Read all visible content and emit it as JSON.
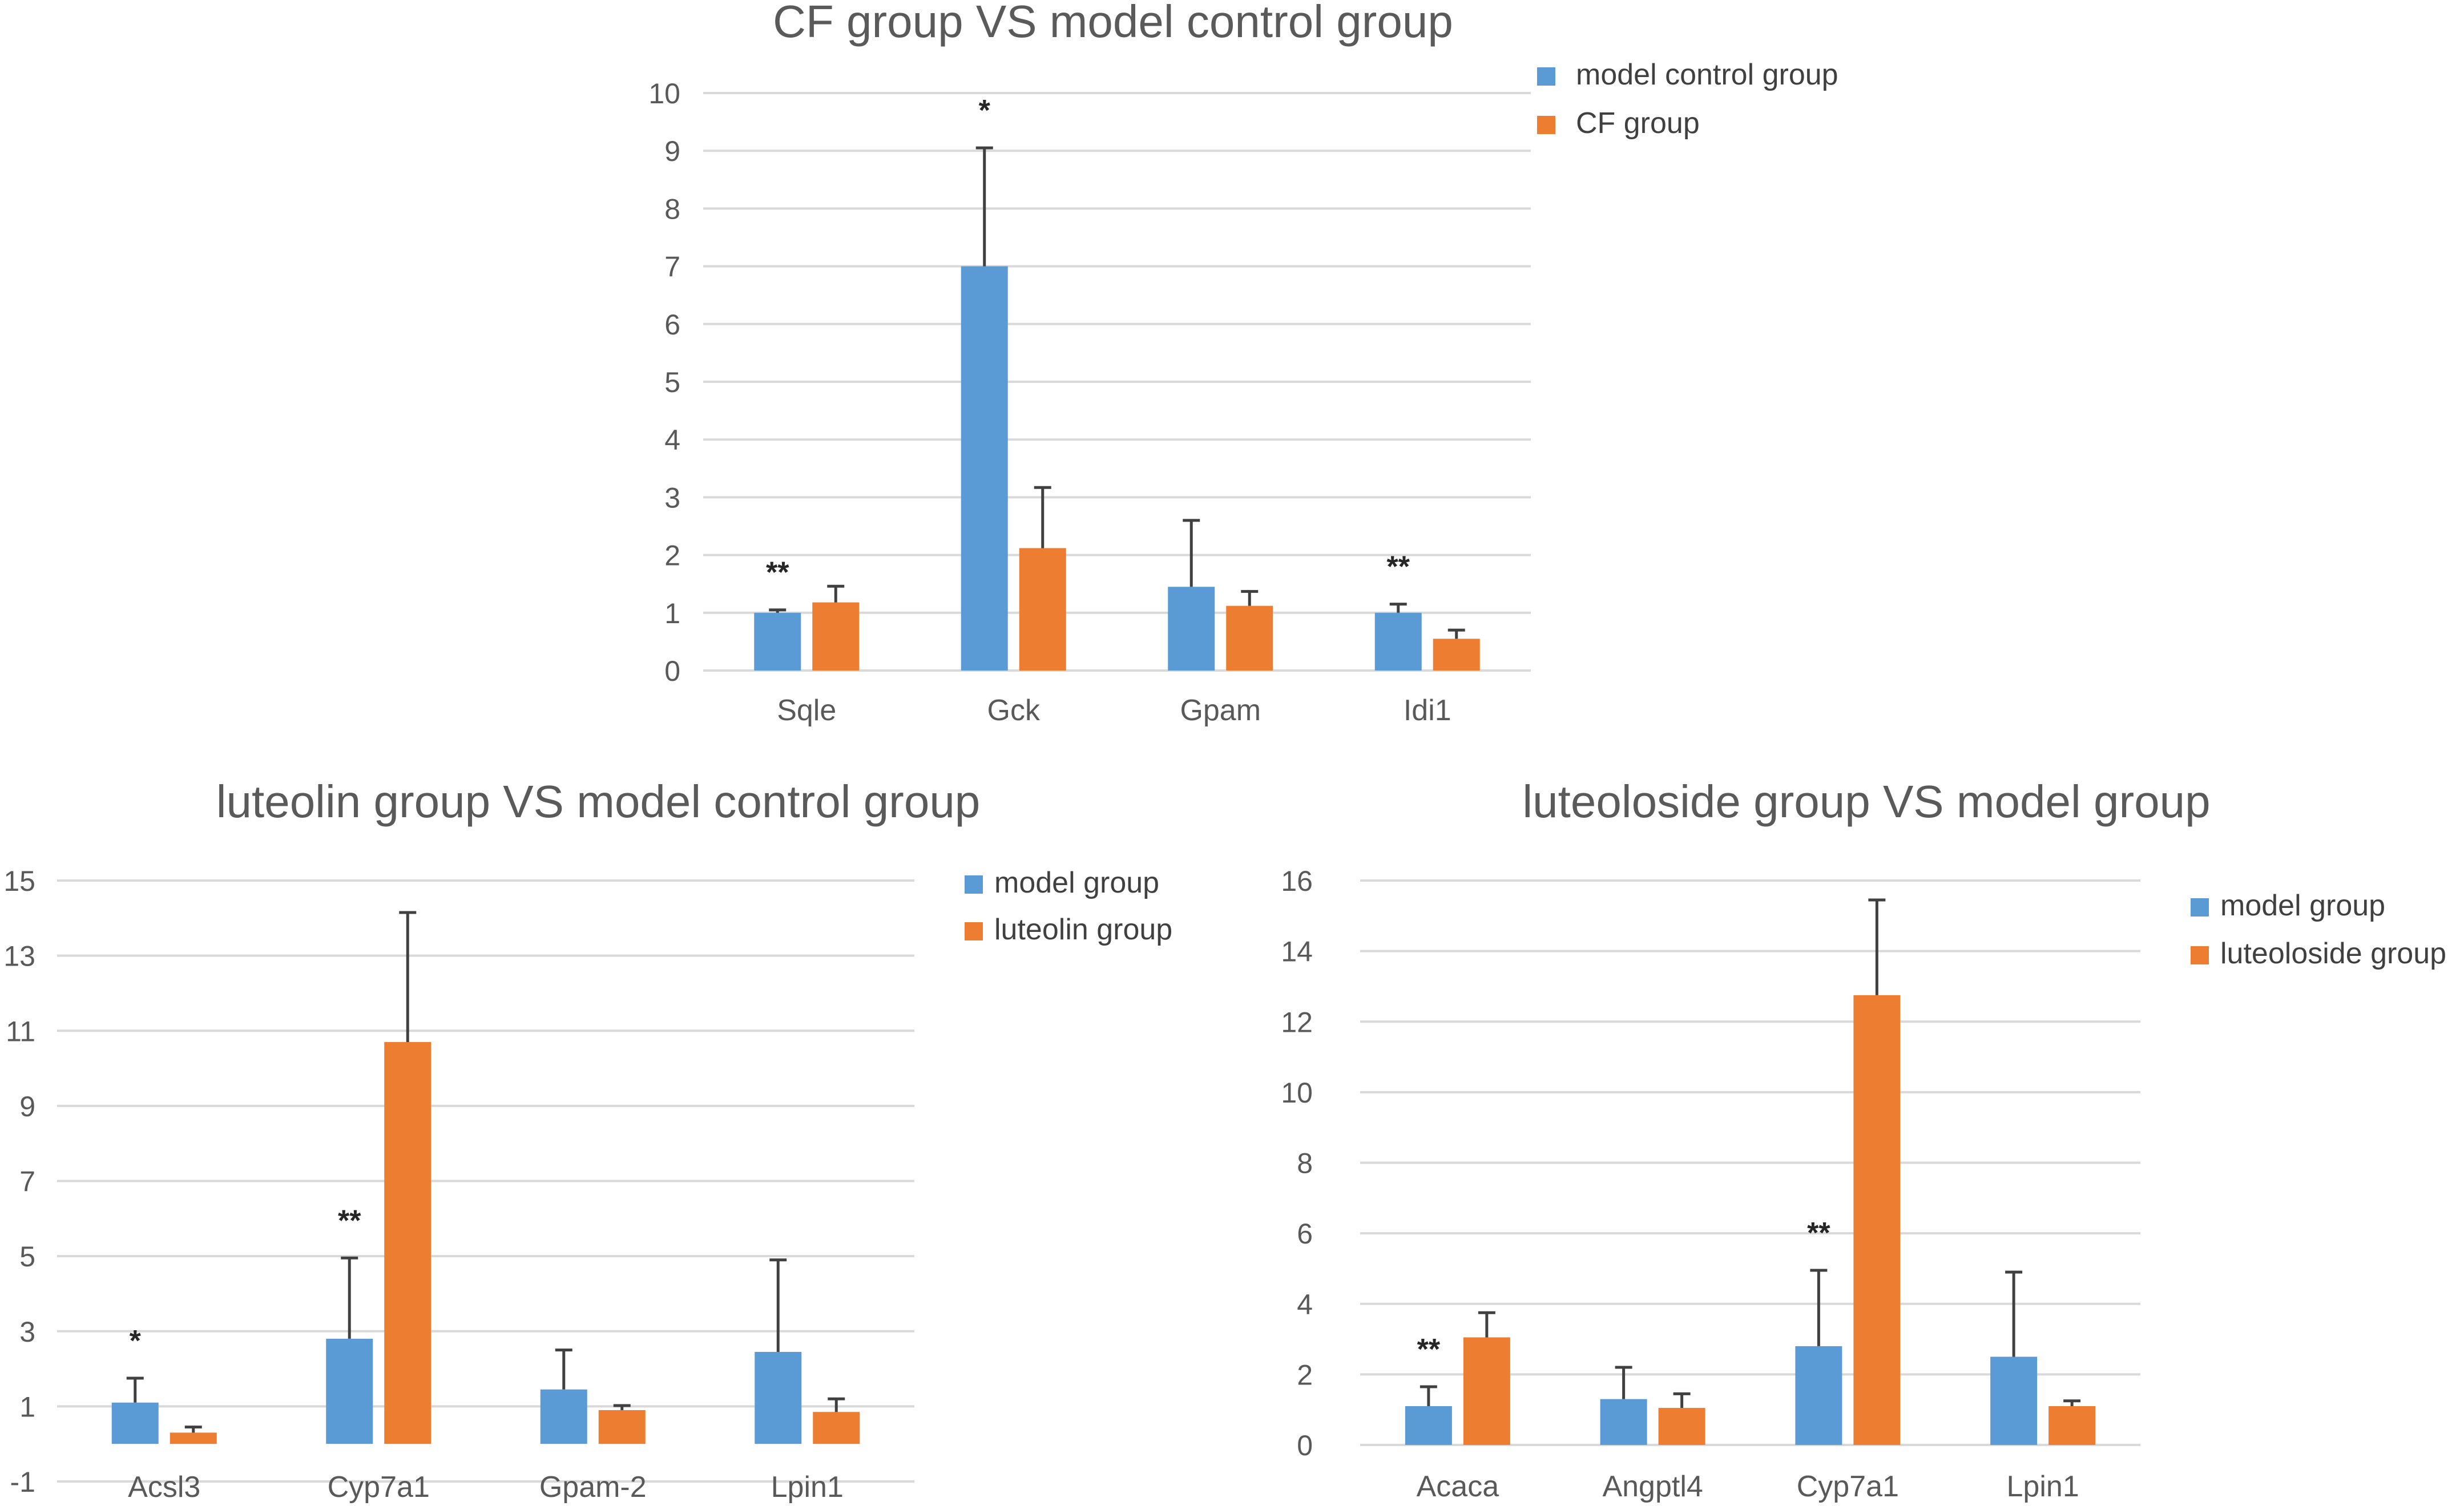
{
  "colors": {
    "model": "#5b9bd5",
    "treat": "#ed7d31"
  },
  "chart_data": [
    {
      "type": "bar",
      "title": "CF group VS model control group",
      "categories": [
        "Sqle",
        "Gck",
        "Gpam",
        "Idi1"
      ],
      "yticks": [
        "0",
        "1",
        "2",
        "3",
        "4",
        "5",
        "6",
        "7",
        "8",
        "9",
        "10"
      ],
      "ylim": [
        0,
        10
      ],
      "series": [
        {
          "name": "model control group",
          "values": [
            1.0,
            7.0,
            1.45,
            1.0
          ],
          "errors": [
            0.05,
            2.05,
            1.15,
            0.15
          ]
        },
        {
          "name": "CF group",
          "values": [
            1.18,
            2.12,
            1.12,
            0.55
          ],
          "errors": [
            0.28,
            1.05,
            0.25,
            0.15
          ]
        }
      ],
      "annotations": [
        "**",
        "*",
        "",
        "**"
      ]
    },
    {
      "type": "bar",
      "title": "luteolin group VS model control group",
      "categories": [
        "Acsl3",
        "Cyp7a1",
        "Gpam-2",
        "Lpin1"
      ],
      "yticks": [
        "-1",
        "1",
        "3",
        "5",
        "7",
        "9",
        "11",
        "13",
        "15"
      ],
      "ylim": [
        -1,
        15
      ],
      "series": [
        {
          "name": "model group",
          "values": [
            1.1,
            2.8,
            1.45,
            2.45
          ],
          "errors": [
            0.65,
            2.15,
            1.05,
            2.45
          ]
        },
        {
          "name": "luteolin  group",
          "values": [
            0.3,
            10.7,
            0.9,
            0.85
          ],
          "errors": [
            0.15,
            3.45,
            0.12,
            0.35
          ]
        }
      ],
      "annotations": [
        "*",
        "**",
        "",
        ""
      ]
    },
    {
      "type": "bar",
      "title": "luteoloside group VS model group",
      "categories": [
        "Acaca",
        "Angptl4",
        "Cyp7a1",
        "Lpin1"
      ],
      "yticks": [
        "0",
        "2",
        "4",
        "6",
        "8",
        "10",
        "12",
        "14",
        "16"
      ],
      "ylim": [
        0,
        16
      ],
      "series": [
        {
          "name": "model group",
          "values": [
            1.1,
            1.3,
            2.8,
            2.5
          ],
          "errors": [
            0.55,
            0.9,
            2.15,
            2.4
          ]
        },
        {
          "name": "luteoloside group",
          "values": [
            3.05,
            1.05,
            12.75,
            1.1
          ],
          "errors": [
            0.7,
            0.4,
            2.7,
            0.15
          ]
        }
      ],
      "annotations": [
        "**",
        "",
        "**",
        ""
      ]
    }
  ]
}
